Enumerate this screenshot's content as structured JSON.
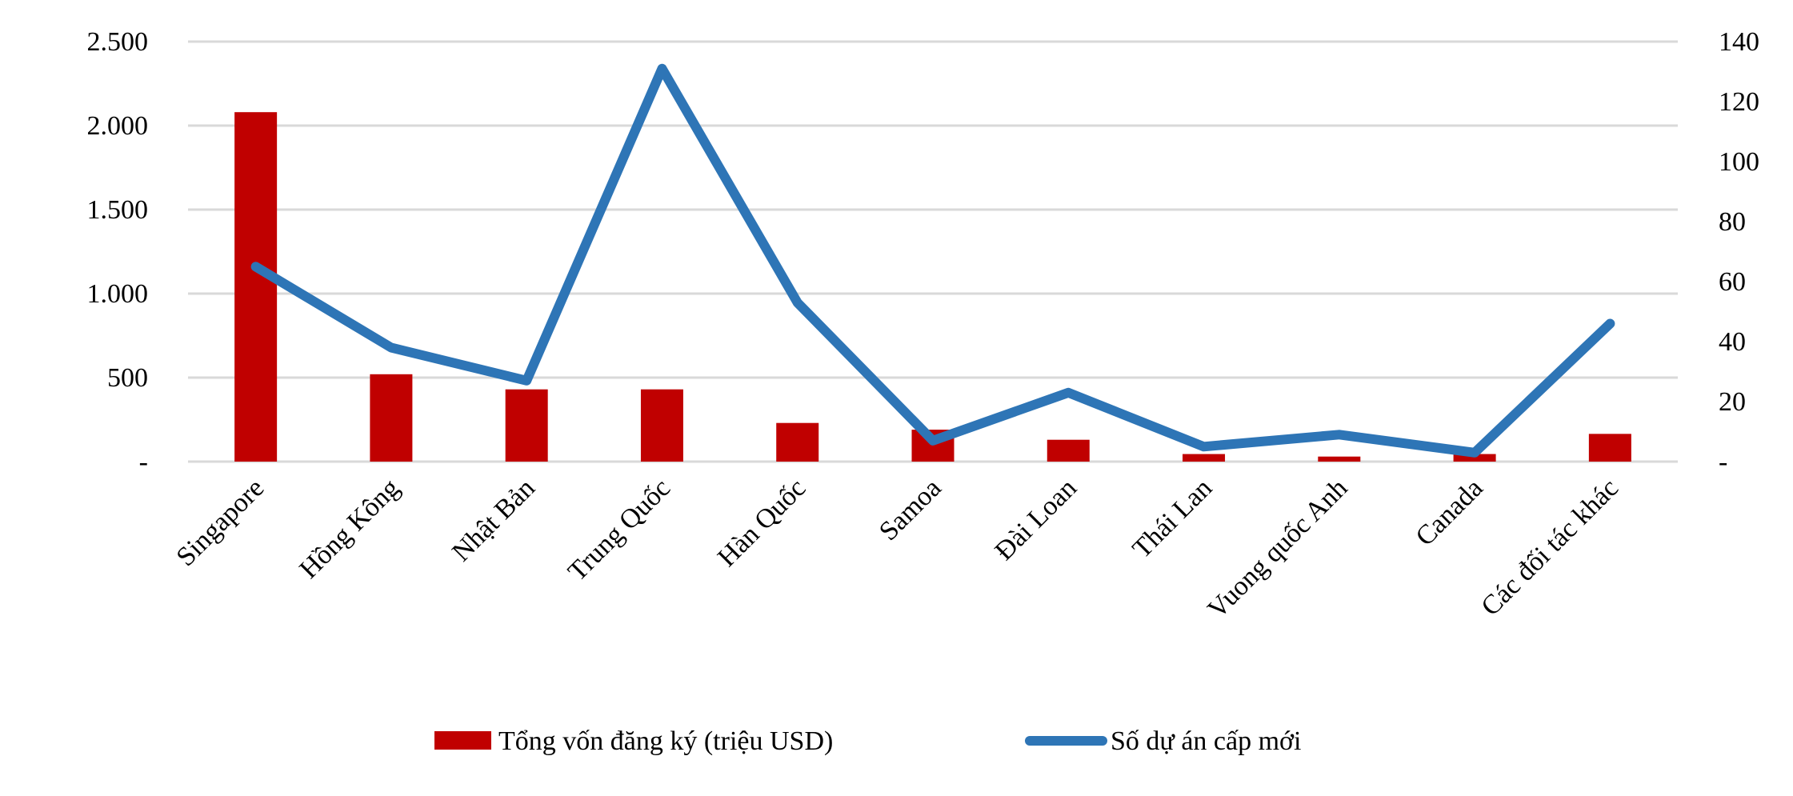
{
  "chart_data": {
    "type": "bar+line",
    "title": "",
    "categories": [
      "Singapore",
      "Hồng Kông",
      "Nhật Bản",
      "Trung Quốc",
      "Hàn Quốc",
      "Samoa",
      "Đài Loan",
      "Thái Lan",
      "Vuong quốc Anh",
      "Canada",
      "Các đối tác khác"
    ],
    "series": [
      {
        "name": "Tổng vốn đăng ký (triệu USD)",
        "type": "bar",
        "axis": "left",
        "color": "#C00000",
        "values": [
          2080,
          520,
          430,
          430,
          230,
          190,
          130,
          45,
          30,
          45,
          165
        ]
      },
      {
        "name": "Số dự án cấp mới",
        "type": "line",
        "axis": "right",
        "color": "#2E75B6",
        "values": [
          65,
          38,
          27,
          131,
          53,
          7,
          23,
          5,
          9,
          3,
          46
        ]
      }
    ],
    "left_axis": {
      "ylim": [
        0,
        2500
      ],
      "ticks": [
        0,
        500,
        1000,
        1500,
        2000,
        2500
      ],
      "tick_labels": [
        "-",
        "500",
        "1.000",
        "1.500",
        "2.000",
        "2.500"
      ],
      "label": ""
    },
    "right_axis": {
      "ylim": [
        0,
        140
      ],
      "ticks": [
        0,
        20,
        40,
        60,
        80,
        100,
        120,
        140
      ],
      "tick_labels": [
        "-",
        "20",
        "40",
        "60",
        "80",
        "100",
        "120",
        "140"
      ],
      "label": ""
    },
    "xlabel": "",
    "grid": true,
    "gridline_color": "#D9D9D9",
    "legend_position": "bottom",
    "legend": [
      {
        "label": "Tổng vốn đăng ký (triệu USD)",
        "marker": "rect",
        "color": "#C00000"
      },
      {
        "label": "Số dự án cấp mới",
        "marker": "line",
        "color": "#2E75B6"
      }
    ]
  }
}
